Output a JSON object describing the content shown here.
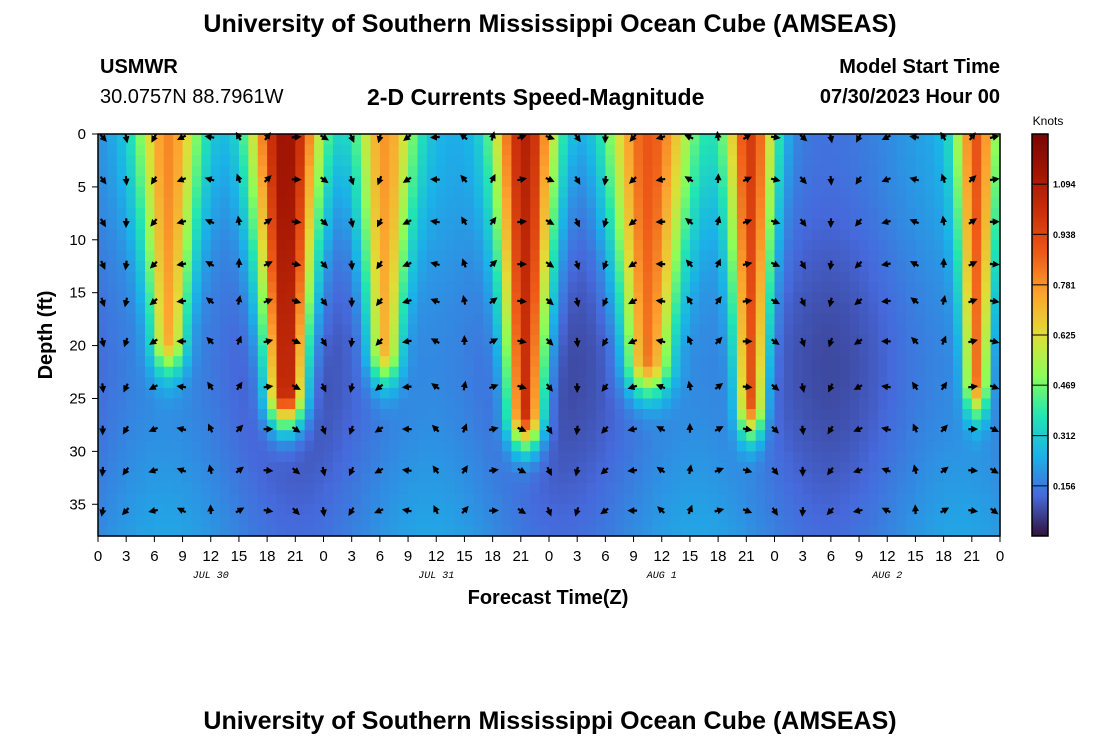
{
  "header": {
    "title": "University of Southern Mississippi Ocean Cube (AMSEAS)",
    "station": "USMWR",
    "coords": "30.0757N  88.7961W",
    "subtitle": "2-D Currents Speed-Magnitude",
    "model_start_label": "Model Start Time",
    "model_start_value": "07/30/2023 Hour 00",
    "footer_title": "University of Southern Mississippi Ocean Cube (AMSEAS)"
  },
  "chart_data": {
    "type": "heatmap",
    "title": "2-D Currents Speed-Magnitude",
    "xlabel": "Forecast Time(Z)",
    "ylabel": "Depth (ft)",
    "xlim": [
      0,
      96
    ],
    "ylim": [
      0,
      38
    ],
    "y_inverted": true,
    "x_ticks": [
      0,
      3,
      6,
      9,
      12,
      15,
      18,
      21,
      24,
      27,
      30,
      33,
      36,
      39,
      42,
      45,
      48,
      51,
      54,
      57,
      60,
      63,
      66,
      69,
      72,
      75,
      78,
      81,
      84,
      87,
      90,
      93,
      96
    ],
    "x_tick_labels": [
      "0",
      "3",
      "6",
      "9",
      "12",
      "15",
      "18",
      "21",
      "0",
      "3",
      "6",
      "9",
      "12",
      "15",
      "18",
      "21",
      "0",
      "3",
      "6",
      "9",
      "12",
      "15",
      "18",
      "21",
      "0",
      "3",
      "6",
      "9",
      "12",
      "15",
      "18",
      "21",
      "0"
    ],
    "date_labels": [
      {
        "hour": 12,
        "label": "JUL 30"
      },
      {
        "hour": 36,
        "label": "JUL 31"
      },
      {
        "hour": 60,
        "label": "AUG 1"
      },
      {
        "hour": 84,
        "label": "AUG 2"
      }
    ],
    "y_ticks": [
      0,
      5,
      10,
      15,
      20,
      25,
      30,
      35
    ],
    "y_tick_labels": [
      "0",
      "5",
      "10",
      "15",
      "20",
      "25",
      "30",
      "35"
    ],
    "colorbar": {
      "label": "Knots",
      "range": [
        0.0,
        1.25
      ],
      "ticks": [
        0.156,
        0.312,
        0.469,
        0.625,
        0.781,
        0.938,
        1.094
      ],
      "tick_labels": [
        "0.156",
        "0.312",
        "0.469",
        "0.625",
        "0.781",
        "0.938",
        "1.094"
      ]
    },
    "arrow_depths": [
      0.3,
      4.3,
      8.3,
      12.3,
      15.8,
      19.6,
      23.9,
      27.9,
      31.8,
      35.6
    ],
    "arrow_hours": [
      0.5,
      3,
      6,
      9,
      12,
      15,
      18,
      21,
      24,
      27,
      30,
      33,
      36,
      39,
      42,
      45,
      48,
      51,
      54,
      57,
      60,
      63,
      66,
      69,
      72,
      75,
      78,
      81,
      84,
      87,
      90,
      93,
      95.3
    ],
    "speed_events": [
      {
        "hour": 7.5,
        "width": 3.0,
        "peak": 0.7,
        "depth_extent": 19
      },
      {
        "hour": 20.0,
        "width": 3.4,
        "peak": 1.15,
        "depth_extent": 24
      },
      {
        "hour": 30.5,
        "width": 2.8,
        "peak": 0.7,
        "depth_extent": 20
      },
      {
        "hour": 45.5,
        "width": 3.0,
        "peak": 1.05,
        "depth_extent": 26
      },
      {
        "hour": 58.5,
        "width": 4.2,
        "peak": 0.82,
        "depth_extent": 21
      },
      {
        "hour": 69.5,
        "width": 2.2,
        "peak": 0.9,
        "depth_extent": 25
      },
      {
        "hour": 93.5,
        "width": 1.8,
        "peak": 0.8,
        "depth_extent": 23
      }
    ]
  }
}
